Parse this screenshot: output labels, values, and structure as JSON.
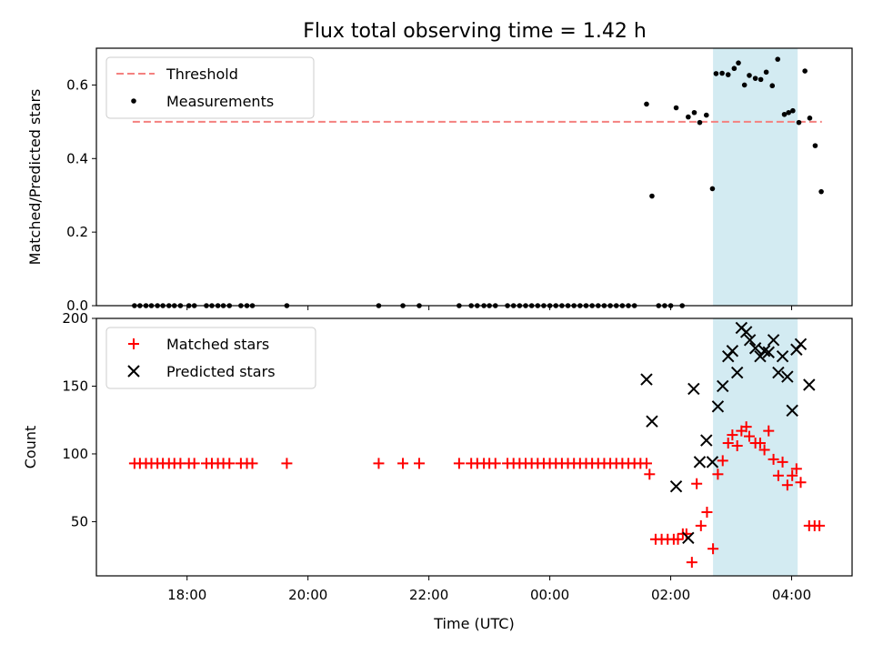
{
  "figure": {
    "title": "Flux total observing time = 1.42 h"
  },
  "chart_data": [
    {
      "type": "scatter",
      "ylabel": "Matched/Predicted stars",
      "xlim": [
        16.5,
        29.0
      ],
      "ylim": [
        0,
        0.7
      ],
      "y_ticks": [
        0,
        0.2,
        0.4,
        0.6
      ],
      "y_tick_labels": [
        "0.0",
        "0.2",
        "0.4",
        "0.6"
      ],
      "shaded_x_range": [
        26.7,
        28.1
      ],
      "shade_color": "#d3ebf2",
      "threshold": {
        "name": "Threshold",
        "y": 0.5,
        "x_range": [
          17.1,
          28.5
        ],
        "color": "#f4817f"
      },
      "legend": {
        "placement": "upper-left",
        "entries": [
          "Threshold",
          "Measurements"
        ]
      },
      "series": [
        {
          "name": "Measurements",
          "marker": "dot",
          "color": "#000000",
          "x": [
            17.13,
            17.22,
            17.32,
            17.41,
            17.51,
            17.6,
            17.7,
            17.79,
            17.89,
            18.03,
            18.12,
            18.32,
            18.41,
            18.51,
            18.6,
            18.7,
            18.89,
            18.99,
            19.08,
            19.65,
            21.17,
            21.57,
            21.84,
            22.5,
            22.7,
            22.8,
            22.91,
            23.0,
            23.1,
            23.3,
            23.4,
            23.5,
            23.6,
            23.7,
            23.8,
            23.9,
            24.0,
            24.1,
            24.2,
            24.3,
            24.4,
            24.5,
            24.6,
            24.7,
            24.8,
            24.9,
            25.0,
            25.1,
            25.2,
            25.3,
            25.4,
            25.6,
            25.69,
            25.8,
            25.9,
            26.0,
            26.09,
            26.19,
            26.29,
            26.39,
            26.48,
            26.59,
            26.69,
            26.75,
            26.85,
            26.95,
            27.05,
            27.12,
            27.22,
            27.3,
            27.4,
            27.49,
            27.58,
            27.68,
            27.77,
            27.88,
            27.95,
            28.02,
            28.12,
            28.22,
            28.3,
            28.39,
            28.49
          ],
          "y": [
            0,
            0,
            0,
            0,
            0,
            0,
            0,
            0,
            0,
            0,
            0,
            0,
            0,
            0,
            0,
            0,
            0,
            0,
            0,
            0,
            0,
            0,
            0,
            0,
            0,
            0,
            0,
            0,
            0,
            0,
            0,
            0,
            0,
            0,
            0,
            0,
            0,
            0,
            0,
            0,
            0,
            0,
            0,
            0,
            0,
            0,
            0,
            0,
            0,
            0,
            0,
            0.548,
            0.298,
            0,
            0,
            0,
            0.538,
            0,
            0.513,
            0.525,
            0.498,
            0.518,
            0.318,
            0.631,
            0.632,
            0.628,
            0.645,
            0.66,
            0.6,
            0.626,
            0.618,
            0.615,
            0.635,
            0.598,
            0.67,
            0.52,
            0.525,
            0.53,
            0.498,
            0.638,
            0.51,
            0.435,
            0.31
          ]
        }
      ]
    },
    {
      "type": "scatter",
      "ylabel": "Count",
      "xlabel": "Time (UTC)",
      "xlim": [
        16.5,
        29.0
      ],
      "ylim": [
        10,
        200
      ],
      "y_ticks": [
        50,
        100,
        150,
        200
      ],
      "y_tick_labels": [
        "50",
        "100",
        "150",
        "200"
      ],
      "x_ticks": [
        18,
        20,
        22,
        24,
        26,
        28
      ],
      "x_tick_labels": [
        "18:00",
        "20:00",
        "22:00",
        "00:00",
        "02:00",
        "04:00"
      ],
      "shaded_x_range": [
        26.7,
        28.1
      ],
      "shade_color": "#d3ebf2",
      "legend": {
        "placement": "upper-left",
        "entries": [
          "Matched stars",
          "Predicted stars"
        ]
      },
      "series": [
        {
          "name": "Matched stars",
          "marker": "plus",
          "color": "#ff0000",
          "x": [
            17.13,
            17.22,
            17.32,
            17.41,
            17.51,
            17.6,
            17.7,
            17.79,
            17.89,
            18.03,
            18.12,
            18.32,
            18.41,
            18.51,
            18.6,
            18.7,
            18.89,
            18.99,
            19.08,
            19.65,
            21.17,
            21.57,
            21.84,
            22.5,
            22.7,
            22.8,
            22.91,
            23.0,
            23.1,
            23.3,
            23.4,
            23.5,
            23.6,
            23.7,
            23.8,
            23.9,
            24.0,
            24.1,
            24.2,
            24.3,
            24.4,
            24.5,
            24.6,
            24.7,
            24.8,
            24.9,
            25.0,
            25.1,
            25.2,
            25.3,
            25.4,
            25.5,
            25.6,
            25.65,
            25.75,
            25.85,
            25.95,
            26.05,
            26.12,
            26.2,
            26.26,
            26.35,
            26.43,
            26.5,
            26.6,
            26.7,
            26.78,
            26.86,
            26.95,
            27.02,
            27.1,
            27.17,
            27.25,
            27.3,
            27.4,
            27.48,
            27.55,
            27.62,
            27.7,
            27.78,
            27.85,
            27.93,
            28.01,
            28.08,
            28.15,
            28.29,
            28.38,
            28.46
          ],
          "y": [
            93,
            93,
            93,
            93,
            93,
            93,
            93,
            93,
            93,
            93,
            93,
            93,
            93,
            93,
            93,
            93,
            93,
            93,
            93,
            93,
            93,
            93,
            93,
            93,
            93,
            93,
            93,
            93,
            93,
            93,
            93,
            93,
            93,
            93,
            93,
            93,
            93,
            93,
            93,
            93,
            93,
            93,
            93,
            93,
            93,
            93,
            93,
            93,
            93,
            93,
            93,
            93,
            93,
            85,
            37,
            37,
            37,
            37,
            37,
            41,
            41,
            20,
            78,
            47,
            57,
            30,
            85,
            95,
            108,
            114,
            106,
            117,
            120,
            113,
            108,
            108,
            103,
            117,
            96,
            84,
            94,
            77,
            84,
            89,
            79,
            47,
            47,
            47
          ]
        },
        {
          "name": "Predicted stars",
          "marker": "x",
          "color": "#000000",
          "x": [
            25.6,
            25.69,
            26.09,
            26.29,
            26.38,
            26.48,
            26.59,
            26.69,
            26.78,
            26.86,
            26.95,
            27.02,
            27.1,
            27.17,
            27.25,
            27.31,
            27.4,
            27.48,
            27.55,
            27.62,
            27.7,
            27.78,
            27.85,
            27.93,
            28.01,
            28.08,
            28.15,
            28.29
          ],
          "y": [
            155,
            124,
            76,
            38,
            148,
            94,
            110,
            94,
            135,
            150,
            172,
            176,
            160,
            193,
            190,
            184,
            178,
            172,
            176,
            175,
            184,
            160,
            172,
            157,
            132,
            177,
            181,
            151
          ]
        }
      ]
    }
  ]
}
